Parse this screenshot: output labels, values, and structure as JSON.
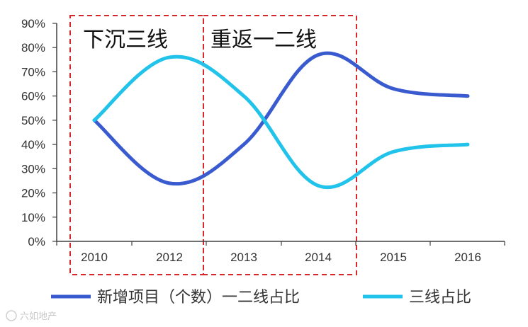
{
  "chart_data": {
    "type": "line",
    "categories": [
      "2010",
      "2012",
      "2013",
      "2014",
      "2015",
      "2016"
    ],
    "series": [
      {
        "name": "新增项目（个数）一二线占比",
        "color": "#3a5bcf",
        "values": [
          50,
          24,
          40,
          77,
          63,
          60
        ]
      },
      {
        "name": "三线占比",
        "color": "#22c3ea",
        "values": [
          50,
          76,
          60,
          23,
          37,
          40
        ]
      }
    ],
    "ylim": [
      0,
      90
    ],
    "yticks": [
      "0%",
      "10%",
      "20%",
      "30%",
      "40%",
      "50%",
      "60%",
      "70%",
      "80%",
      "90%"
    ],
    "legend_position": "bottom",
    "annotations": [
      {
        "text": "下沉三线",
        "from": "2010",
        "to": "2012"
      },
      {
        "text": "重返一二线",
        "from": "2013",
        "to": "2014"
      }
    ],
    "annotation_box_color": "#d9262b"
  },
  "watermark": "六如地产"
}
